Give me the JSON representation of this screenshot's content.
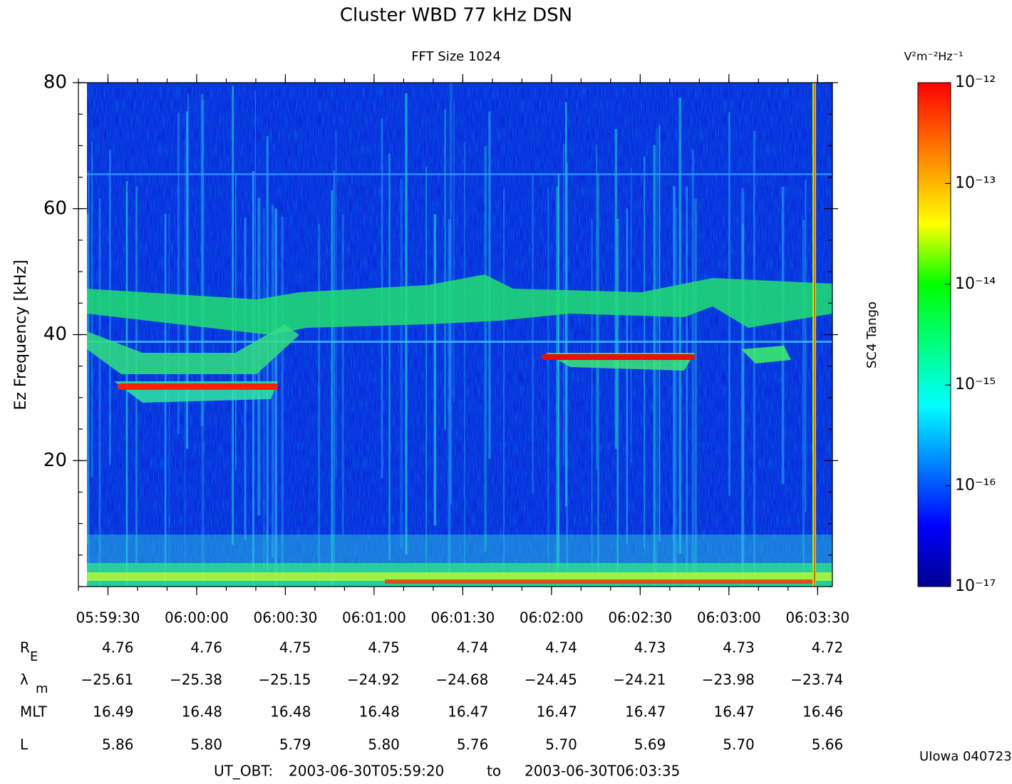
{
  "chart_data": {
    "type": "spectrogram",
    "title": "Cluster WBD 77 kHz DSN",
    "subtitle": "FFT Size 1024",
    "ylabel": "Ez Frequency [kHz]",
    "ylim": [
      0,
      80
    ],
    "yticks": [
      20,
      40,
      60,
      80
    ],
    "xlim": [
      "2003-06-30T05:59:20",
      "2003-06-30T06:03:35"
    ],
    "xticks": [
      "05:59:30",
      "06:00:00",
      "06:00:30",
      "06:01:00",
      "06:01:30",
      "06:02:00",
      "06:02:30",
      "06:03:00",
      "06:03:30"
    ],
    "spacecraft": "SC4 Tango",
    "colorbar": {
      "label": "V²m⁻²Hz⁻¹",
      "log": true,
      "lim": [
        1e-17,
        1e-12
      ],
      "ticks": [
        {
          "value": 1e-12,
          "label": "10⁻¹²"
        },
        {
          "value": 1e-13,
          "label": "10⁻¹³"
        },
        {
          "value": 1e-14,
          "label": "10⁻¹⁴"
        },
        {
          "value": 1e-15,
          "label": "10⁻¹⁵"
        },
        {
          "value": 1e-16,
          "label": "10⁻¹⁶"
        },
        {
          "value": 1e-17,
          "label": "10⁻¹⁷"
        }
      ]
    },
    "ephemeris": {
      "rows": [
        {
          "label": "R",
          "sub": "E",
          "values": [
            "4.76",
            "4.76",
            "4.75",
            "4.75",
            "4.74",
            "4.74",
            "4.73",
            "4.73",
            "4.72"
          ]
        },
        {
          "label": "λ",
          "sub": "m",
          "values": [
            "−25.61",
            "−25.38",
            "−25.15",
            "−24.92",
            "−24.68",
            "−24.45",
            "−24.21",
            "−23.98",
            "−23.74"
          ]
        },
        {
          "label": "MLT",
          "values": [
            "16.49",
            "16.48",
            "16.48",
            "16.48",
            "16.47",
            "16.47",
            "16.47",
            "16.47",
            "16.46"
          ]
        },
        {
          "label": "L",
          "values": [
            "5.86",
            "5.80",
            "5.79",
            "5.80",
            "5.76",
            "5.70",
            "5.69",
            "5.70",
            "5.66"
          ]
        }
      ]
    },
    "footer": {
      "prefix": "UT_OBT:",
      "start": "2003-06-30T05:59:20",
      "to": "to",
      "end": "2003-06-30T06:03:35"
    },
    "credit": "UIowa 040723"
  }
}
